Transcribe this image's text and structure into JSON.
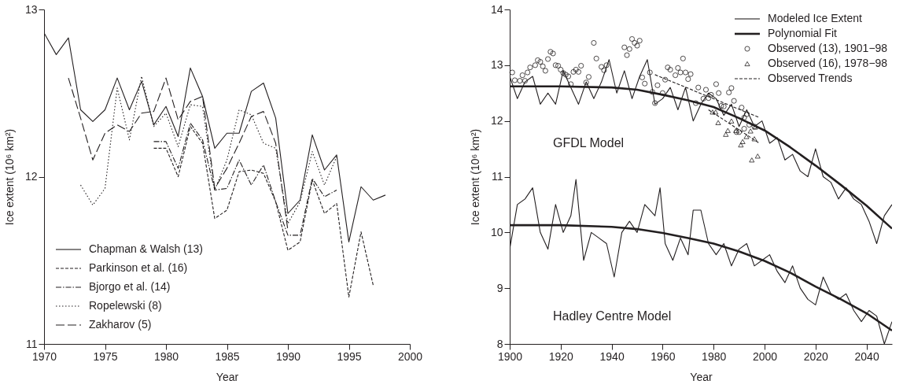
{
  "chart_data": [
    {
      "type": "line",
      "xlabel": "Year",
      "ylabel": "Ice extent (10⁶ km²)",
      "xlim": [
        1970,
        2000
      ],
      "ylim": [
        11,
        13
      ],
      "xticks": [
        1970,
        1975,
        1980,
        1985,
        1990,
        1995,
        2000
      ],
      "yticks": [
        11,
        12,
        13
      ],
      "grid": false,
      "legend": "bottom left",
      "series": [
        {
          "name": "Chapman & Walsh (13)",
          "color": "#231f20",
          "line_style": "solid",
          "x": [
            1970,
            1971,
            1972,
            1973,
            1974,
            1975,
            1976,
            1977,
            1978,
            1979,
            1980,
            1981,
            1982,
            1983,
            1984,
            1985,
            1986,
            1987,
            1988,
            1989,
            1990,
            1991,
            1992,
            1993,
            1994,
            1995,
            1996,
            1997,
            1998
          ],
          "values": [
            12.86,
            12.73,
            12.83,
            12.4,
            12.33,
            12.4,
            12.59,
            12.4,
            12.57,
            12.31,
            12.42,
            12.24,
            12.65,
            12.48,
            12.17,
            12.26,
            12.26,
            12.51,
            12.56,
            12.35,
            11.78,
            11.86,
            12.25,
            12.04,
            12.13,
            11.61,
            11.94,
            11.86,
            11.89
          ]
        },
        {
          "name": "Parkinson et al. (16)",
          "color": "#231f20",
          "line_style": "dashed",
          "x": [
            1979,
            1980,
            1981,
            1982,
            1983,
            1984,
            1985,
            1986,
            1987,
            1988,
            1989,
            1990,
            1991,
            1992,
            1993,
            1994,
            1995,
            1996,
            1997
          ],
          "values": [
            12.17,
            12.17,
            12.0,
            12.3,
            12.2,
            11.75,
            11.8,
            12.03,
            12.04,
            12.02,
            11.85,
            11.56,
            11.61,
            11.98,
            11.78,
            11.84,
            11.28,
            11.67,
            11.35
          ]
        },
        {
          "name": "Bjorgo et al. (14)",
          "color": "#231f20",
          "line_style": "dashdot",
          "x": [
            1979,
            1980,
            1981,
            1982,
            1983,
            1984,
            1985,
            1986,
            1987,
            1988,
            1989,
            1990,
            1991,
            1992,
            1993,
            1994
          ],
          "values": [
            12.21,
            12.21,
            12.05,
            12.32,
            12.22,
            11.92,
            11.93,
            12.1,
            11.95,
            12.07,
            11.85,
            11.65,
            11.65,
            11.99,
            11.88,
            11.92
          ]
        },
        {
          "name": "Ropelewski (8)",
          "color": "#231f20",
          "line_style": "dotted",
          "x": [
            1973,
            1974,
            1975,
            1976,
            1977,
            1978,
            1979,
            1980,
            1981,
            1982,
            1983,
            1984,
            1985,
            1986,
            1987,
            1988,
            1989,
            1990,
            1991,
            1992,
            1993,
            1994
          ],
          "values": [
            11.95,
            11.83,
            11.93,
            12.53,
            12.22,
            12.6,
            12.3,
            12.38,
            12.18,
            12.43,
            12.42,
            11.92,
            12.1,
            12.4,
            12.37,
            12.2,
            12.17,
            11.72,
            11.85,
            12.15,
            11.95,
            12.12
          ]
        },
        {
          "name": "Zakharov (5)",
          "color": "#231f20",
          "line_style": "longdash",
          "x": [
            1972,
            1973,
            1974,
            1975,
            1976,
            1977,
            1978,
            1979,
            1980,
            1981,
            1982,
            1983,
            1984,
            1985,
            1986,
            1987,
            1988,
            1989,
            1990
          ],
          "values": [
            12.59,
            12.35,
            12.1,
            12.26,
            12.31,
            12.27,
            12.38,
            12.39,
            12.59,
            12.34,
            12.45,
            12.48,
            11.93,
            12.05,
            12.2,
            12.36,
            12.39,
            12.2,
            11.68
          ]
        }
      ]
    },
    {
      "type": "line",
      "xlabel": "Year",
      "ylabel": "Ice extent (10⁶ km²)",
      "xlim": [
        1900,
        2050
      ],
      "ylim": [
        8,
        14
      ],
      "xticks": [
        1900,
        1920,
        1940,
        1960,
        1980,
        2000,
        2020,
        2040
      ],
      "yticks": [
        8,
        9,
        10,
        11,
        12,
        13,
        14
      ],
      "grid": false,
      "legend": "top right",
      "annotations": [
        "GFDL Model",
        "Hadley Centre Model"
      ],
      "series": [
        {
          "name": "Modeled Ice Extent",
          "type": "line",
          "color": "#231f20",
          "line_style": "solid",
          "x": [
            1900,
            1903,
            1906,
            1909,
            1912,
            1915,
            1918,
            1921,
            1924,
            1927,
            1930,
            1933,
            1936,
            1939,
            1942,
            1945,
            1948,
            1951,
            1954,
            1957,
            1960,
            1963,
            1966,
            1969,
            1972,
            1975,
            1978,
            1981,
            1984,
            1987,
            1990,
            1993,
            1996,
            1999,
            2002,
            2005,
            2008,
            2011,
            2014,
            2017,
            2020,
            2023,
            2026,
            2029,
            2032,
            2035,
            2038,
            2041,
            2044,
            2047,
            2050
          ],
          "values": [
            12.8,
            12.4,
            12.7,
            12.8,
            12.3,
            12.5,
            12.3,
            12.9,
            12.6,
            12.3,
            12.7,
            12.4,
            12.7,
            13.1,
            12.5,
            12.9,
            12.4,
            12.8,
            13.1,
            12.3,
            12.4,
            12.6,
            12.2,
            12.6,
            12.0,
            12.3,
            12.5,
            12.4,
            12.1,
            12.3,
            11.9,
            12.2,
            11.9,
            12.0,
            11.6,
            11.7,
            11.3,
            11.4,
            11.1,
            11.0,
            11.5,
            11.0,
            10.9,
            10.6,
            10.8,
            10.6,
            10.5,
            10.2,
            9.8,
            10.3,
            10.5
          ]
        },
        {
          "type": "line",
          "color": "#231f20",
          "line_style": "solid",
          "x": [
            1900,
            1903,
            1906,
            1909,
            1912,
            1915,
            1918,
            1921,
            1924,
            1926,
            1929,
            1932,
            1935,
            1938,
            1941,
            1944,
            1947,
            1950,
            1953,
            1957,
            1959,
            1961,
            1964,
            1967,
            1970,
            1972,
            1975,
            1978,
            1981,
            1984,
            1987,
            1990,
            1993,
            1996,
            1999,
            2002,
            2005,
            2008,
            2011,
            2014,
            2017,
            2020,
            2023,
            2026,
            2029,
            2032,
            2035,
            2038,
            2041,
            2044,
            2047,
            2050
          ],
          "values": [
            9.7,
            10.5,
            10.6,
            10.8,
            10.0,
            9.7,
            10.5,
            10.0,
            10.3,
            10.95,
            9.5,
            10.0,
            9.9,
            9.8,
            9.2,
            10.0,
            10.2,
            10.0,
            10.5,
            10.3,
            10.8,
            9.8,
            9.5,
            9.9,
            9.6,
            10.4,
            10.4,
            9.8,
            9.6,
            9.8,
            9.4,
            9.7,
            9.8,
            9.4,
            9.5,
            9.6,
            9.3,
            9.1,
            9.4,
            9.0,
            8.8,
            8.7,
            9.2,
            8.9,
            8.8,
            8.9,
            8.6,
            8.4,
            8.6,
            8.5,
            8.0,
            8.4
          ]
        },
        {
          "name": "Polynomial Fit",
          "type": "line",
          "color": "#231f20",
          "line_style": "solid",
          "x": [
            1900,
            1920,
            1940,
            1950,
            1960,
            1970,
            1980,
            1990,
            2000,
            2010,
            2020,
            2030,
            2040,
            2050
          ],
          "values": [
            12.62,
            12.62,
            12.6,
            12.56,
            12.47,
            12.37,
            12.25,
            12.05,
            11.83,
            11.53,
            11.2,
            10.85,
            10.48,
            10.07
          ]
        },
        {
          "type": "line",
          "color": "#231f20",
          "line_style": "solid",
          "x": [
            1900,
            1920,
            1940,
            1950,
            1960,
            1970,
            1980,
            1990,
            2000,
            2010,
            2020,
            2030,
            2040,
            2050
          ],
          "values": [
            10.13,
            10.13,
            10.1,
            10.06,
            9.99,
            9.9,
            9.8,
            9.66,
            9.49,
            9.28,
            9.03,
            8.8,
            8.55,
            8.24
          ]
        },
        {
          "name": "Observed (13), 1901−98",
          "type": "scatter",
          "marker": "circle",
          "color": "#231f20",
          "x": [
            1901,
            1902,
            1904,
            1906,
            1905,
            1907,
            1908,
            1910,
            1911,
            1912,
            1913,
            1914,
            1915,
            1916,
            1917,
            1918,
            1919,
            1920,
            1921,
            1922,
            1923,
            1924,
            1925,
            1926,
            1927,
            1928,
            1930,
            1931,
            1933,
            1934,
            1936,
            1937,
            1938,
            1945,
            1946,
            1947,
            1948,
            1949,
            1950,
            1951,
            1952,
            1953,
            1955,
            1956,
            1957,
            1958,
            1960,
            1961,
            1962,
            1963,
            1965,
            1966,
            1967,
            1968,
            1969,
            1970,
            1971,
            1973,
            1974,
            1976,
            1977,
            1978,
            1979,
            1981,
            1982,
            1983,
            1984,
            1986,
            1987,
            1988,
            1989,
            1990,
            1991,
            1992,
            1992,
            1993,
            1994,
            1996
          ],
          "values": [
            12.87,
            12.73,
            12.72,
            12.72,
            12.82,
            12.87,
            12.96,
            13.0,
            13.09,
            13.06,
            12.98,
            12.9,
            13.11,
            13.24,
            13.21,
            13.0,
            12.99,
            12.92,
            12.86,
            12.83,
            12.8,
            12.66,
            12.88,
            12.92,
            12.88,
            12.99,
            12.69,
            12.79,
            13.4,
            13.12,
            12.97,
            12.91,
            13.0,
            13.32,
            13.18,
            13.29,
            13.47,
            13.4,
            13.35,
            13.44,
            12.78,
            12.67,
            12.87,
            12.52,
            12.32,
            12.64,
            12.5,
            12.74,
            12.96,
            12.92,
            12.82,
            12.95,
            12.87,
            13.12,
            12.87,
            12.75,
            12.84,
            12.32,
            12.6,
            12.4,
            12.56,
            12.41,
            12.47,
            12.66,
            12.5,
            12.27,
            12.26,
            12.51,
            12.59,
            12.36,
            11.8,
            11.8,
            12.24,
            12.06,
            11.86,
            12.12,
            11.93,
            11.9
          ]
        },
        {
          "name": "Observed (16), 1978−98",
          "type": "scatter",
          "marker": "triangle",
          "color": "#231f20",
          "x": [
            1979.6,
            1980.8,
            1981.8,
            1984.8,
            1985.6,
            1987,
            1988.8,
            1990.7,
            1991.4,
            1992.9,
            1994.5,
            1996,
            1995,
            1997.3,
            1996.3
          ],
          "values": [
            12.16,
            12.16,
            11.97,
            11.76,
            11.83,
            12.0,
            11.83,
            11.57,
            11.63,
            11.72,
            11.82,
            11.68,
            11.3,
            11.37,
            11.89
          ]
        },
        {
          "name": "Observed Trends",
          "type": "line",
          "color": "#231f20",
          "line_style": "dashed",
          "x": [
            1957,
            1998
          ],
          "values": [
            12.83,
            12.06
          ]
        },
        {
          "type": "line",
          "color": "#231f20",
          "line_style": "dashed",
          "x": [
            1978,
            1998
          ],
          "values": [
            12.2,
            11.6
          ]
        }
      ]
    }
  ]
}
